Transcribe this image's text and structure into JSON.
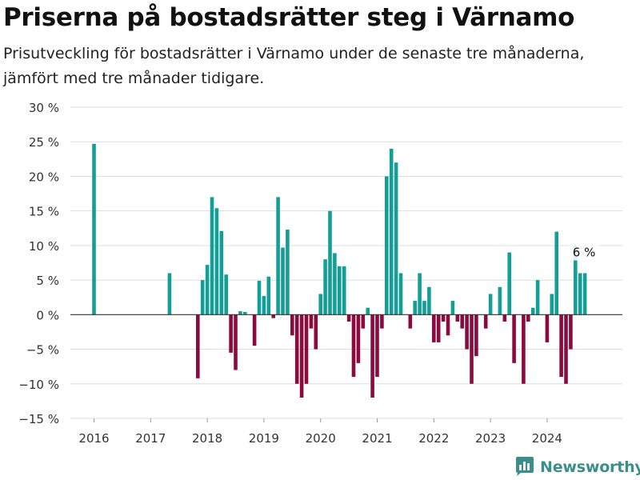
{
  "header": {
    "title": "Priserna på bostadsrätter steg i Värnamo",
    "subtitle": "Prisutveckling för bostadsrätter i Värnamo under de senaste tre månaderna, jämfört med tre månader tidigare."
  },
  "brand": {
    "name": "Newsworthy",
    "icon": "bar-chart-logo-icon"
  },
  "colors": {
    "positive": "#149e98",
    "negative": "#8b0b3f",
    "grid": "#dddddd",
    "zero_line": "#333333",
    "brand": "#3a8f8a"
  },
  "chart_data": {
    "type": "bar",
    "y_unit": "%",
    "ylim": [
      -15,
      30
    ],
    "yticks": [
      30,
      25,
      20,
      15,
      10,
      5,
      0,
      -5,
      -10,
      -15
    ],
    "ytick_labels": [
      "30 %",
      "25 %",
      "20 %",
      "15 %",
      "10 %",
      "5 %",
      "0 %",
      "−5 %",
      "−10 %",
      "−15 %"
    ],
    "xticks": [
      "2016",
      "2017",
      "2018",
      "2019",
      "2020",
      "2021",
      "2022",
      "2023",
      "2024"
    ],
    "grid": true,
    "annotation": {
      "text": "6 %",
      "target": "last"
    },
    "series": [
      {
        "x": [
          "2016-01",
          "2017-05",
          "2017-11",
          "2017-12",
          "2018-01",
          "2018-02",
          "2018-03",
          "2018-04",
          "2018-05",
          "2018-06",
          "2018-07",
          "2018-08",
          "2018-09",
          "2018-11",
          "2018-12",
          "2019-01",
          "2019-02",
          "2019-03",
          "2019-04",
          "2019-05",
          "2019-06",
          "2019-07",
          "2019-08",
          "2019-09",
          "2019-10",
          "2019-11",
          "2019-12",
          "2020-01",
          "2020-02",
          "2020-03",
          "2020-04",
          "2020-05",
          "2020-06",
          "2020-07",
          "2020-08",
          "2020-09",
          "2020-10",
          "2020-11",
          "2020-12",
          "2021-01",
          "2021-02",
          "2021-03",
          "2021-04",
          "2021-05",
          "2021-06",
          "2021-08",
          "2021-09",
          "2021-10",
          "2021-11",
          "2021-12",
          "2022-01",
          "2022-02",
          "2022-03",
          "2022-04",
          "2022-05",
          "2022-06",
          "2022-07",
          "2022-08",
          "2022-09",
          "2022-10",
          "2022-12",
          "2023-01",
          "2023-03",
          "2023-04",
          "2023-05",
          "2023-06",
          "2023-08",
          "2023-09",
          "2023-10",
          "2023-11",
          "2024-01",
          "2024-02",
          "2024-03",
          "2024-04",
          "2024-05",
          "2024-06",
          "2024-07",
          "2024-08",
          "2024-09"
        ],
        "values": [
          24.7,
          6.0,
          -9.2,
          5.0,
          7.2,
          17.0,
          15.4,
          12.1,
          5.8,
          -5.5,
          -8.0,
          0.5,
          0.4,
          -4.5,
          4.9,
          2.7,
          5.5,
          -0.5,
          17.0,
          9.7,
          12.3,
          -3.0,
          -10.0,
          -12.0,
          -10.0,
          -2.0,
          -5.0,
          3.0,
          8.0,
          15.0,
          8.9,
          7.0,
          7.0,
          -1.0,
          -9.0,
          -7.0,
          -2.0,
          1.0,
          -12.0,
          -9.0,
          -2.0,
          20.0,
          24.0,
          22.0,
          6.0,
          -2.0,
          2.0,
          6.0,
          2.0,
          4.0,
          -4.0,
          -4.0,
          -1.0,
          -3.0,
          2.0,
          -1.0,
          -2.0,
          -5.0,
          -10.0,
          -6.0,
          -2.0,
          3.0,
          4.0,
          -1.0,
          9.0,
          -7.0,
          -10.0,
          -1.0,
          1.0,
          5.0,
          -4.0,
          3.0,
          12.0,
          -9.0,
          -10.0,
          -5.0,
          10.0,
          6.0,
          6.0
        ]
      }
    ]
  }
}
